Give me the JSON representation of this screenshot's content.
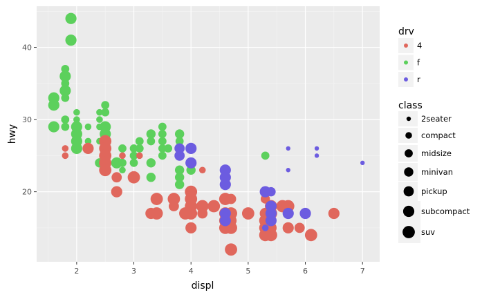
{
  "chart_data": {
    "type": "scatter",
    "xlabel": "displ",
    "ylabel": "hwy",
    "xlim": [
      1.3,
      7.3
    ],
    "ylim": [
      10.3,
      45.7
    ],
    "x_ticks": [
      2,
      3,
      4,
      5,
      6,
      7
    ],
    "y_ticks": [
      20,
      30,
      40
    ],
    "grid": true,
    "legend_position": "right",
    "color_legend": {
      "title": "drv",
      "entries": [
        {
          "label": "4",
          "color": "#e0675c"
        },
        {
          "label": "f",
          "color": "#5cd05c"
        },
        {
          "label": "r",
          "color": "#6c5ce0"
        }
      ]
    },
    "size_legend": {
      "title": "class",
      "entries": [
        {
          "label": "2seater",
          "size": 1
        },
        {
          "label": "compact",
          "size": 2
        },
        {
          "label": "midsize",
          "size": 3
        },
        {
          "label": "minivan",
          "size": 4
        },
        {
          "label": "pickup",
          "size": 5
        },
        {
          "label": "subcompact",
          "size": 6
        },
        {
          "label": "suv",
          "size": 7
        }
      ]
    },
    "series": [
      {
        "drv": "f",
        "points": [
          [
            1.9,
            44,
            6
          ],
          [
            1.9,
            41,
            6
          ],
          [
            1.6,
            33,
            6
          ],
          [
            1.6,
            32,
            6
          ],
          [
            1.6,
            29,
            6
          ],
          [
            1.8,
            37,
            3
          ],
          [
            1.8,
            36,
            6
          ],
          [
            1.8,
            35,
            3
          ],
          [
            1.8,
            34,
            6
          ],
          [
            1.8,
            33,
            3
          ],
          [
            1.8,
            30,
            3
          ],
          [
            1.8,
            29,
            3
          ],
          [
            2.0,
            31,
            2
          ],
          [
            2.0,
            30,
            2
          ],
          [
            2.0,
            29,
            6
          ],
          [
            2.0,
            28,
            6
          ],
          [
            2.0,
            27,
            6
          ],
          [
            2.0,
            26,
            6
          ],
          [
            2.2,
            29,
            2
          ],
          [
            2.2,
            27,
            2
          ],
          [
            2.4,
            31,
            2
          ],
          [
            2.4,
            30,
            2
          ],
          [
            2.4,
            29,
            2
          ],
          [
            2.4,
            27,
            2
          ],
          [
            2.4,
            24,
            4
          ],
          [
            2.5,
            32,
            3
          ],
          [
            2.5,
            31,
            3
          ],
          [
            2.5,
            29,
            6
          ],
          [
            2.5,
            28,
            6
          ],
          [
            2.5,
            26,
            3
          ],
          [
            2.7,
            24,
            6
          ],
          [
            2.8,
            26,
            3
          ],
          [
            2.8,
            24,
            3
          ],
          [
            2.8,
            23,
            2
          ],
          [
            3.0,
            26,
            3
          ],
          [
            3.0,
            25,
            3
          ],
          [
            3.0,
            24,
            3
          ],
          [
            3.1,
            27,
            3
          ],
          [
            3.1,
            26,
            3
          ],
          [
            3.3,
            28,
            4
          ],
          [
            3.3,
            27,
            3
          ],
          [
            3.3,
            24,
            4
          ],
          [
            3.3,
            22,
            4
          ],
          [
            3.5,
            29,
            3
          ],
          [
            3.5,
            28,
            3
          ],
          [
            3.5,
            27,
            3
          ],
          [
            3.5,
            26,
            3
          ],
          [
            3.5,
            25,
            3
          ],
          [
            3.6,
            26,
            3
          ],
          [
            3.8,
            28,
            4
          ],
          [
            3.8,
            27,
            3
          ],
          [
            3.8,
            26,
            3
          ],
          [
            3.8,
            23,
            4
          ],
          [
            3.8,
            22,
            4
          ],
          [
            3.8,
            21,
            4
          ],
          [
            4.0,
            23,
            4
          ],
          [
            5.3,
            25,
            3
          ]
        ]
      },
      {
        "drv": "4",
        "points": [
          [
            1.8,
            26,
            2
          ],
          [
            1.8,
            25,
            2
          ],
          [
            2.2,
            26,
            6
          ],
          [
            2.5,
            27,
            7
          ],
          [
            2.5,
            26,
            7
          ],
          [
            2.5,
            25,
            7
          ],
          [
            2.5,
            24,
            7
          ],
          [
            2.5,
            23,
            7
          ],
          [
            2.7,
            22,
            5
          ],
          [
            2.7,
            20,
            6
          ],
          [
            2.8,
            25,
            2
          ],
          [
            3.0,
            22,
            7
          ],
          [
            3.1,
            25,
            2
          ],
          [
            3.3,
            17,
            6
          ],
          [
            3.4,
            19,
            7
          ],
          [
            3.4,
            17,
            7
          ],
          [
            3.7,
            19,
            7
          ],
          [
            3.7,
            18,
            5
          ],
          [
            3.9,
            17,
            7
          ],
          [
            4.0,
            20,
            7
          ],
          [
            4.0,
            19,
            7
          ],
          [
            4.0,
            18,
            7
          ],
          [
            4.0,
            17,
            7
          ],
          [
            4.0,
            15,
            6
          ],
          [
            4.2,
            23,
            2
          ],
          [
            4.2,
            18,
            7
          ],
          [
            4.2,
            17,
            5
          ],
          [
            4.4,
            18,
            7
          ],
          [
            4.6,
            19,
            7
          ],
          [
            4.6,
            17,
            7
          ],
          [
            4.6,
            16,
            7
          ],
          [
            4.6,
            15,
            7
          ],
          [
            4.7,
            19,
            5
          ],
          [
            4.7,
            17,
            7
          ],
          [
            4.7,
            16,
            6
          ],
          [
            4.7,
            15,
            7
          ],
          [
            4.7,
            12,
            7
          ],
          [
            5.0,
            17,
            7
          ],
          [
            5.3,
            17,
            6
          ],
          [
            5.3,
            16,
            7
          ],
          [
            5.3,
            15,
            7
          ],
          [
            5.3,
            19,
            4
          ],
          [
            5.4,
            18,
            7
          ],
          [
            5.4,
            17,
            7
          ],
          [
            5.4,
            15,
            6
          ],
          [
            5.4,
            14,
            7
          ],
          [
            5.3,
            14,
            7
          ],
          [
            5.6,
            18,
            7
          ],
          [
            5.7,
            18,
            7
          ],
          [
            5.7,
            15,
            6
          ],
          [
            5.9,
            15,
            5
          ],
          [
            6.1,
            14,
            7
          ],
          [
            6.5,
            17,
            6
          ]
        ]
      },
      {
        "drv": "r",
        "points": [
          [
            3.8,
            26,
            5
          ],
          [
            3.8,
            25,
            5
          ],
          [
            4.0,
            26,
            6
          ],
          [
            4.0,
            24,
            6
          ],
          [
            4.6,
            23,
            6
          ],
          [
            4.6,
            22,
            6
          ],
          [
            4.6,
            21,
            6
          ],
          [
            4.6,
            17,
            6
          ],
          [
            4.6,
            16,
            6
          ],
          [
            5.3,
            20,
            6
          ],
          [
            5.3,
            15,
            2
          ],
          [
            5.4,
            20,
            4
          ],
          [
            5.4,
            18,
            6
          ],
          [
            5.4,
            17,
            6
          ],
          [
            5.4,
            16,
            6
          ],
          [
            5.7,
            26,
            1
          ],
          [
            5.7,
            23,
            1
          ],
          [
            5.7,
            17,
            6
          ],
          [
            6.0,
            17,
            6
          ],
          [
            6.2,
            26,
            1
          ],
          [
            6.2,
            25,
            1
          ],
          [
            7.0,
            24,
            1
          ]
        ]
      }
    ]
  }
}
